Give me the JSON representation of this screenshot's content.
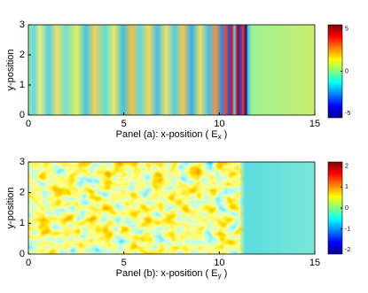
{
  "chart_data": [
    {
      "type": "heatmap",
      "xlabel": "Panel (a): x-position ( E",
      "xlabel_sub": "x",
      "xlabel_end": " )",
      "ylabel": "y-position",
      "xlim": [
        0,
        15
      ],
      "xticks": [
        0,
        5,
        10,
        15
      ],
      "ylim": [
        0,
        3
      ],
      "yticks": [
        0,
        1,
        2,
        3
      ],
      "clim": [
        -5.5,
        5.5
      ],
      "cticks": [
        5,
        0,
        -5
      ]
    },
    {
      "type": "heatmap",
      "xlabel": "Panel (b): x-position ( E",
      "xlabel_sub": "y",
      "xlabel_end": " )",
      "ylabel": "y-position",
      "xlim": [
        0,
        15
      ],
      "xticks": [
        0,
        5,
        10,
        15
      ],
      "ylim": [
        0,
        3
      ],
      "yticks": [
        0,
        1,
        2,
        3
      ],
      "clim": [
        -2.2,
        2.2
      ],
      "cticks": [
        2,
        1,
        0,
        -1,
        -2
      ]
    }
  ]
}
